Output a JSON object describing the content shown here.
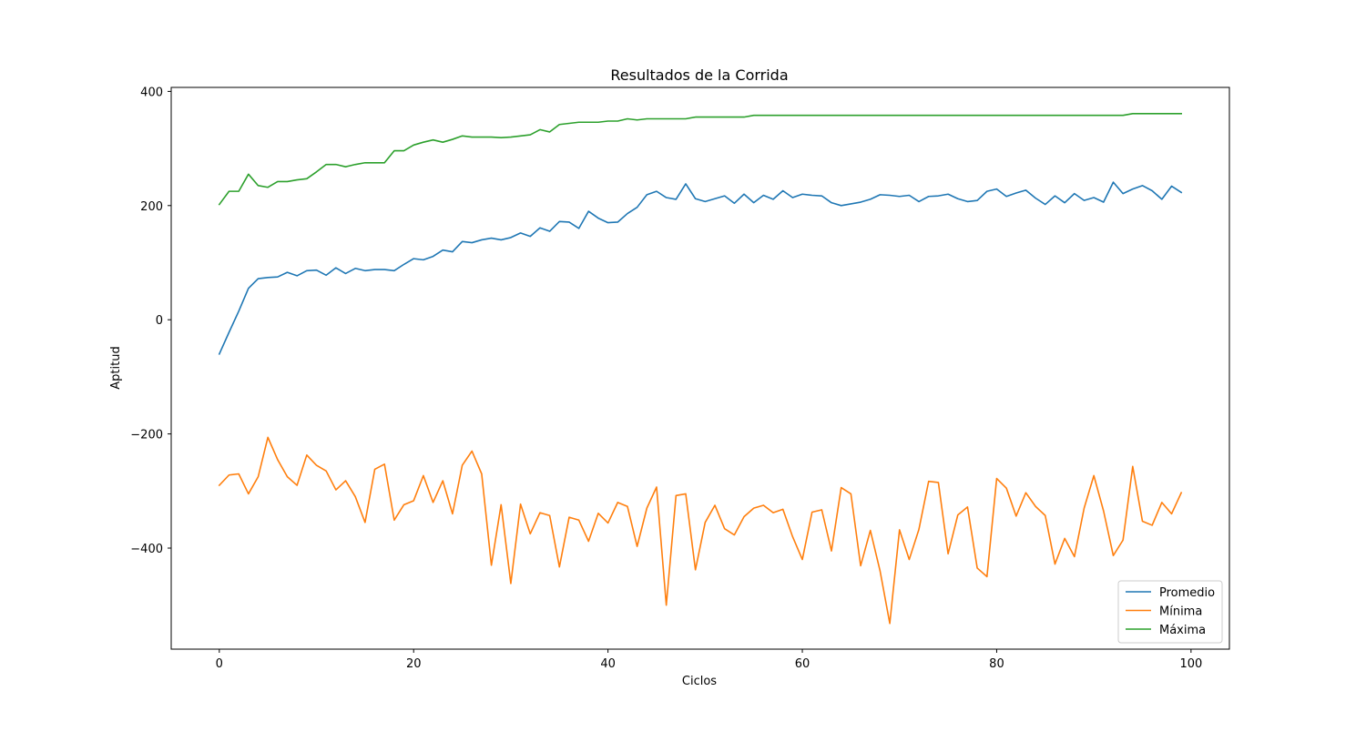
{
  "chart_data": {
    "type": "line",
    "title": "Resultados de la Corrida",
    "xlabel": "Ciclos",
    "ylabel": "Aptitud",
    "xlim": [
      -4.95,
      103.95
    ],
    "ylim": [
      -577,
      407
    ],
    "xticks": [
      0,
      20,
      40,
      60,
      80,
      100
    ],
    "xtick_labels": [
      "0",
      "20",
      "40",
      "60",
      "80",
      "100"
    ],
    "yticks": [
      -400,
      -200,
      0,
      200,
      400
    ],
    "ytick_labels": [
      "−400",
      "−200",
      "0",
      "200",
      "400"
    ],
    "grid": false,
    "legend_position": "lower right",
    "series": [
      {
        "name": "Promedio",
        "color": "#1f77b4",
        "values": [
          -60,
          -22,
          15,
          55,
          72,
          74,
          75,
          83,
          77,
          86,
          87,
          78,
          91,
          81,
          90,
          86,
          88,
          88,
          86,
          97,
          107,
          105,
          111,
          122,
          119,
          137,
          135,
          140,
          143,
          140,
          144,
          152,
          146,
          161,
          155,
          172,
          171,
          160,
          190,
          178,
          170,
          171,
          186,
          197,
          219,
          225,
          214,
          211,
          238,
          212,
          207,
          212,
          217,
          204,
          220,
          205,
          218,
          211,
          226,
          214,
          220,
          218,
          217,
          205,
          200,
          203,
          206,
          211,
          219,
          218,
          216,
          218,
          207,
          216,
          217,
          220,
          212,
          207,
          209,
          225,
          229,
          216,
          222,
          227,
          213,
          202,
          217,
          205,
          221,
          209,
          214,
          206,
          241,
          221,
          229,
          235,
          226,
          211,
          234,
          223
        ]
      },
      {
        "name": "Mínima",
        "color": "#ff7f0e",
        "values": [
          -290,
          -272,
          -270,
          -305,
          -275,
          -206,
          -245,
          -275,
          -290,
          -237,
          -255,
          -265,
          -298,
          -282,
          -310,
          -355,
          -262,
          -253,
          -351,
          -324,
          -317,
          -273,
          -320,
          -282,
          -340,
          -255,
          -230,
          -270,
          -430,
          -324,
          -462,
          -323,
          -375,
          -338,
          -343,
          -433,
          -346,
          -351,
          -388,
          -339,
          -356,
          -320,
          -327,
          -397,
          -330,
          -293,
          -500,
          -308,
          -305,
          -438,
          -355,
          -325,
          -366,
          -377,
          -345,
          -330,
          -325,
          -338,
          -332,
          -380,
          -420,
          -337,
          -333,
          -405,
          -294,
          -305,
          -431,
          -369,
          -440,
          -532,
          -368,
          -420,
          -367,
          -283,
          -285,
          -410,
          -342,
          -328,
          -435,
          -450,
          -278,
          -295,
          -344,
          -303,
          -327,
          -343,
          -428,
          -383,
          -415,
          -330,
          -273,
          -335,
          -413,
          -386,
          -257,
          -353,
          -360,
          -320,
          -340,
          -303
        ]
      },
      {
        "name": "Máxima",
        "color": "#2ca02c",
        "values": [
          202,
          225,
          225,
          255,
          235,
          232,
          242,
          242,
          245,
          247,
          259,
          272,
          272,
          268,
          272,
          275,
          275,
          275,
          296,
          296,
          306,
          311,
          315,
          311,
          316,
          322,
          320,
          320,
          320,
          319,
          320,
          322,
          324,
          333,
          329,
          342,
          344,
          346,
          346,
          346,
          348,
          348,
          352,
          350,
          352,
          352,
          352,
          352,
          352,
          355,
          355,
          355,
          355,
          355,
          355,
          358,
          358,
          358,
          358,
          358,
          358,
          358,
          358,
          358,
          358,
          358,
          358,
          358,
          358,
          358,
          358,
          358,
          358,
          358,
          358,
          358,
          358,
          358,
          358,
          358,
          358,
          358,
          358,
          358,
          358,
          358,
          358,
          358,
          358,
          358,
          358,
          358,
          358,
          358,
          361,
          361,
          361,
          361,
          361,
          361
        ]
      }
    ]
  }
}
